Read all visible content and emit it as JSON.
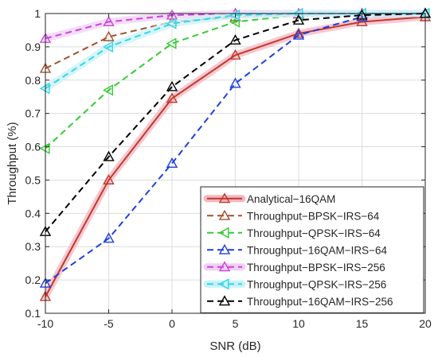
{
  "chart_data": {
    "type": "line",
    "title": "",
    "xlabel": "SNR (dB)",
    "ylabel": "Throughput (%)",
    "xlim": [
      -10,
      20
    ],
    "ylim": [
      0.1,
      1.0
    ],
    "xticks": [
      -10,
      -5,
      0,
      5,
      10,
      15,
      20
    ],
    "xtick_labels": [
      "-10",
      "-5",
      "0",
      "5",
      "10",
      "15",
      "20"
    ],
    "yticks": [
      0.1,
      0.2,
      0.3,
      0.4,
      0.5,
      0.6,
      0.7,
      0.8,
      0.9,
      1.0
    ],
    "ytick_labels": [
      "0.1",
      "0.2",
      "0.3",
      "0.4",
      "0.5",
      "0.6",
      "0.7",
      "0.8",
      "0.9",
      "1"
    ],
    "grid": true,
    "legend_position": "bottom-right",
    "x": [
      -10,
      -5,
      0,
      5,
      10,
      15,
      20
    ],
    "series": [
      {
        "name": "Analytical−16QAM",
        "values": [
          0.15,
          0.5,
          0.745,
          0.875,
          0.94,
          0.975,
          0.99
        ],
        "color": "#c0392b",
        "dash": "solid",
        "marker": "triangle-up",
        "glow": "#f4b6c2"
      },
      {
        "name": "Throughput−BPSK−IRS−64",
        "values": [
          0.835,
          0.93,
          0.975,
          0.99,
          0.998,
          1.0,
          1.0
        ],
        "color": "#a0522d",
        "dash": "dashed",
        "marker": "triangle-up",
        "glow": ""
      },
      {
        "name": "Throughput−QPSK−IRS−64",
        "values": [
          0.595,
          0.77,
          0.91,
          0.975,
          0.995,
          1.0,
          1.0
        ],
        "color": "#33cc33",
        "dash": "dashed",
        "marker": "triangle-left",
        "glow": ""
      },
      {
        "name": "Throughput−16QAM−IRS−64",
        "values": [
          0.19,
          0.325,
          0.55,
          0.79,
          0.935,
          0.99,
          1.0
        ],
        "color": "#1f3fe0",
        "dash": "dashed",
        "marker": "triangle-up",
        "glow": ""
      },
      {
        "name": "Throughput−BPSK−IRS−256",
        "values": [
          0.925,
          0.975,
          0.995,
          1.0,
          1.0,
          1.0,
          1.0
        ],
        "color": "#cc44dd",
        "dash": "dashed",
        "marker": "triangle-up",
        "glow": "#f0d0f4"
      },
      {
        "name": "Throughput−QPSK−IRS−256",
        "values": [
          0.775,
          0.9,
          0.97,
          0.995,
          1.0,
          1.0,
          1.0
        ],
        "color": "#33d6e6",
        "dash": "dashed",
        "marker": "triangle-left",
        "glow": "#c9f2f7"
      },
      {
        "name": "Throughput−16QAM−IRS−256",
        "values": [
          0.345,
          0.57,
          0.78,
          0.92,
          0.98,
          0.995,
          1.0
        ],
        "color": "#000000",
        "dash": "dashed",
        "marker": "triangle-up",
        "glow": ""
      }
    ]
  }
}
